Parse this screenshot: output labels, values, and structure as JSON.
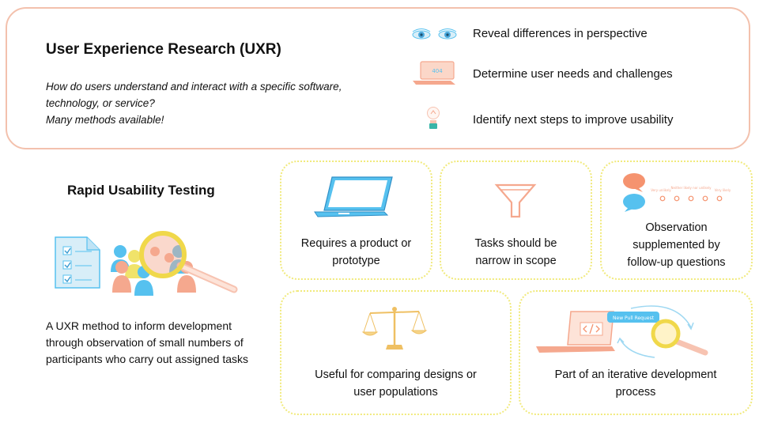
{
  "uxr": {
    "title": "User Experience Research (UXR)",
    "question_line1": "How do users understand and interact with a specific software,",
    "question_line2": "technology, or service?",
    "methods_note": "Many methods available!"
  },
  "benefits": [
    {
      "icon": "eyes-icon",
      "label": "Reveal differences in perspective"
    },
    {
      "icon": "laptop-404-icon",
      "label": "Determine user needs and challenges"
    },
    {
      "icon": "lightbulb-icon",
      "label": "Identify next steps to improve usability"
    }
  ],
  "rapid": {
    "title": "Rapid Usability Testing",
    "desc_line1": "A UXR method to inform development",
    "desc_line2": "through observation of small numbers of",
    "desc_line3": "participants who carry out assigned tasks"
  },
  "cards": [
    {
      "icon": "laptop-icon",
      "line1": "Requires a product or",
      "line2": "prototype"
    },
    {
      "icon": "funnel-icon",
      "line1": "Tasks should be",
      "line2": "narrow in scope"
    },
    {
      "icon": "chat-bubbles-icon",
      "line1": "Observation",
      "line2": "supplemented by",
      "line3": "follow-up questions",
      "scale_labels": [
        "Very unlikely",
        "Neither likely nor unlikely",
        "Very likely"
      ]
    },
    {
      "icon": "scales-icon",
      "line1": "Useful for comparing designs or",
      "line2": "user populations"
    },
    {
      "icon": "iterative-cycle-icon",
      "line1": "Part of an iterative development",
      "line2": "process",
      "pull_request_label": "New Pull Request",
      "error_code": "404"
    }
  ],
  "colors": {
    "salmon": "#f5a88e",
    "blue": "#56c1ef",
    "yellow": "#f0e36a",
    "gold": "#efc063"
  }
}
